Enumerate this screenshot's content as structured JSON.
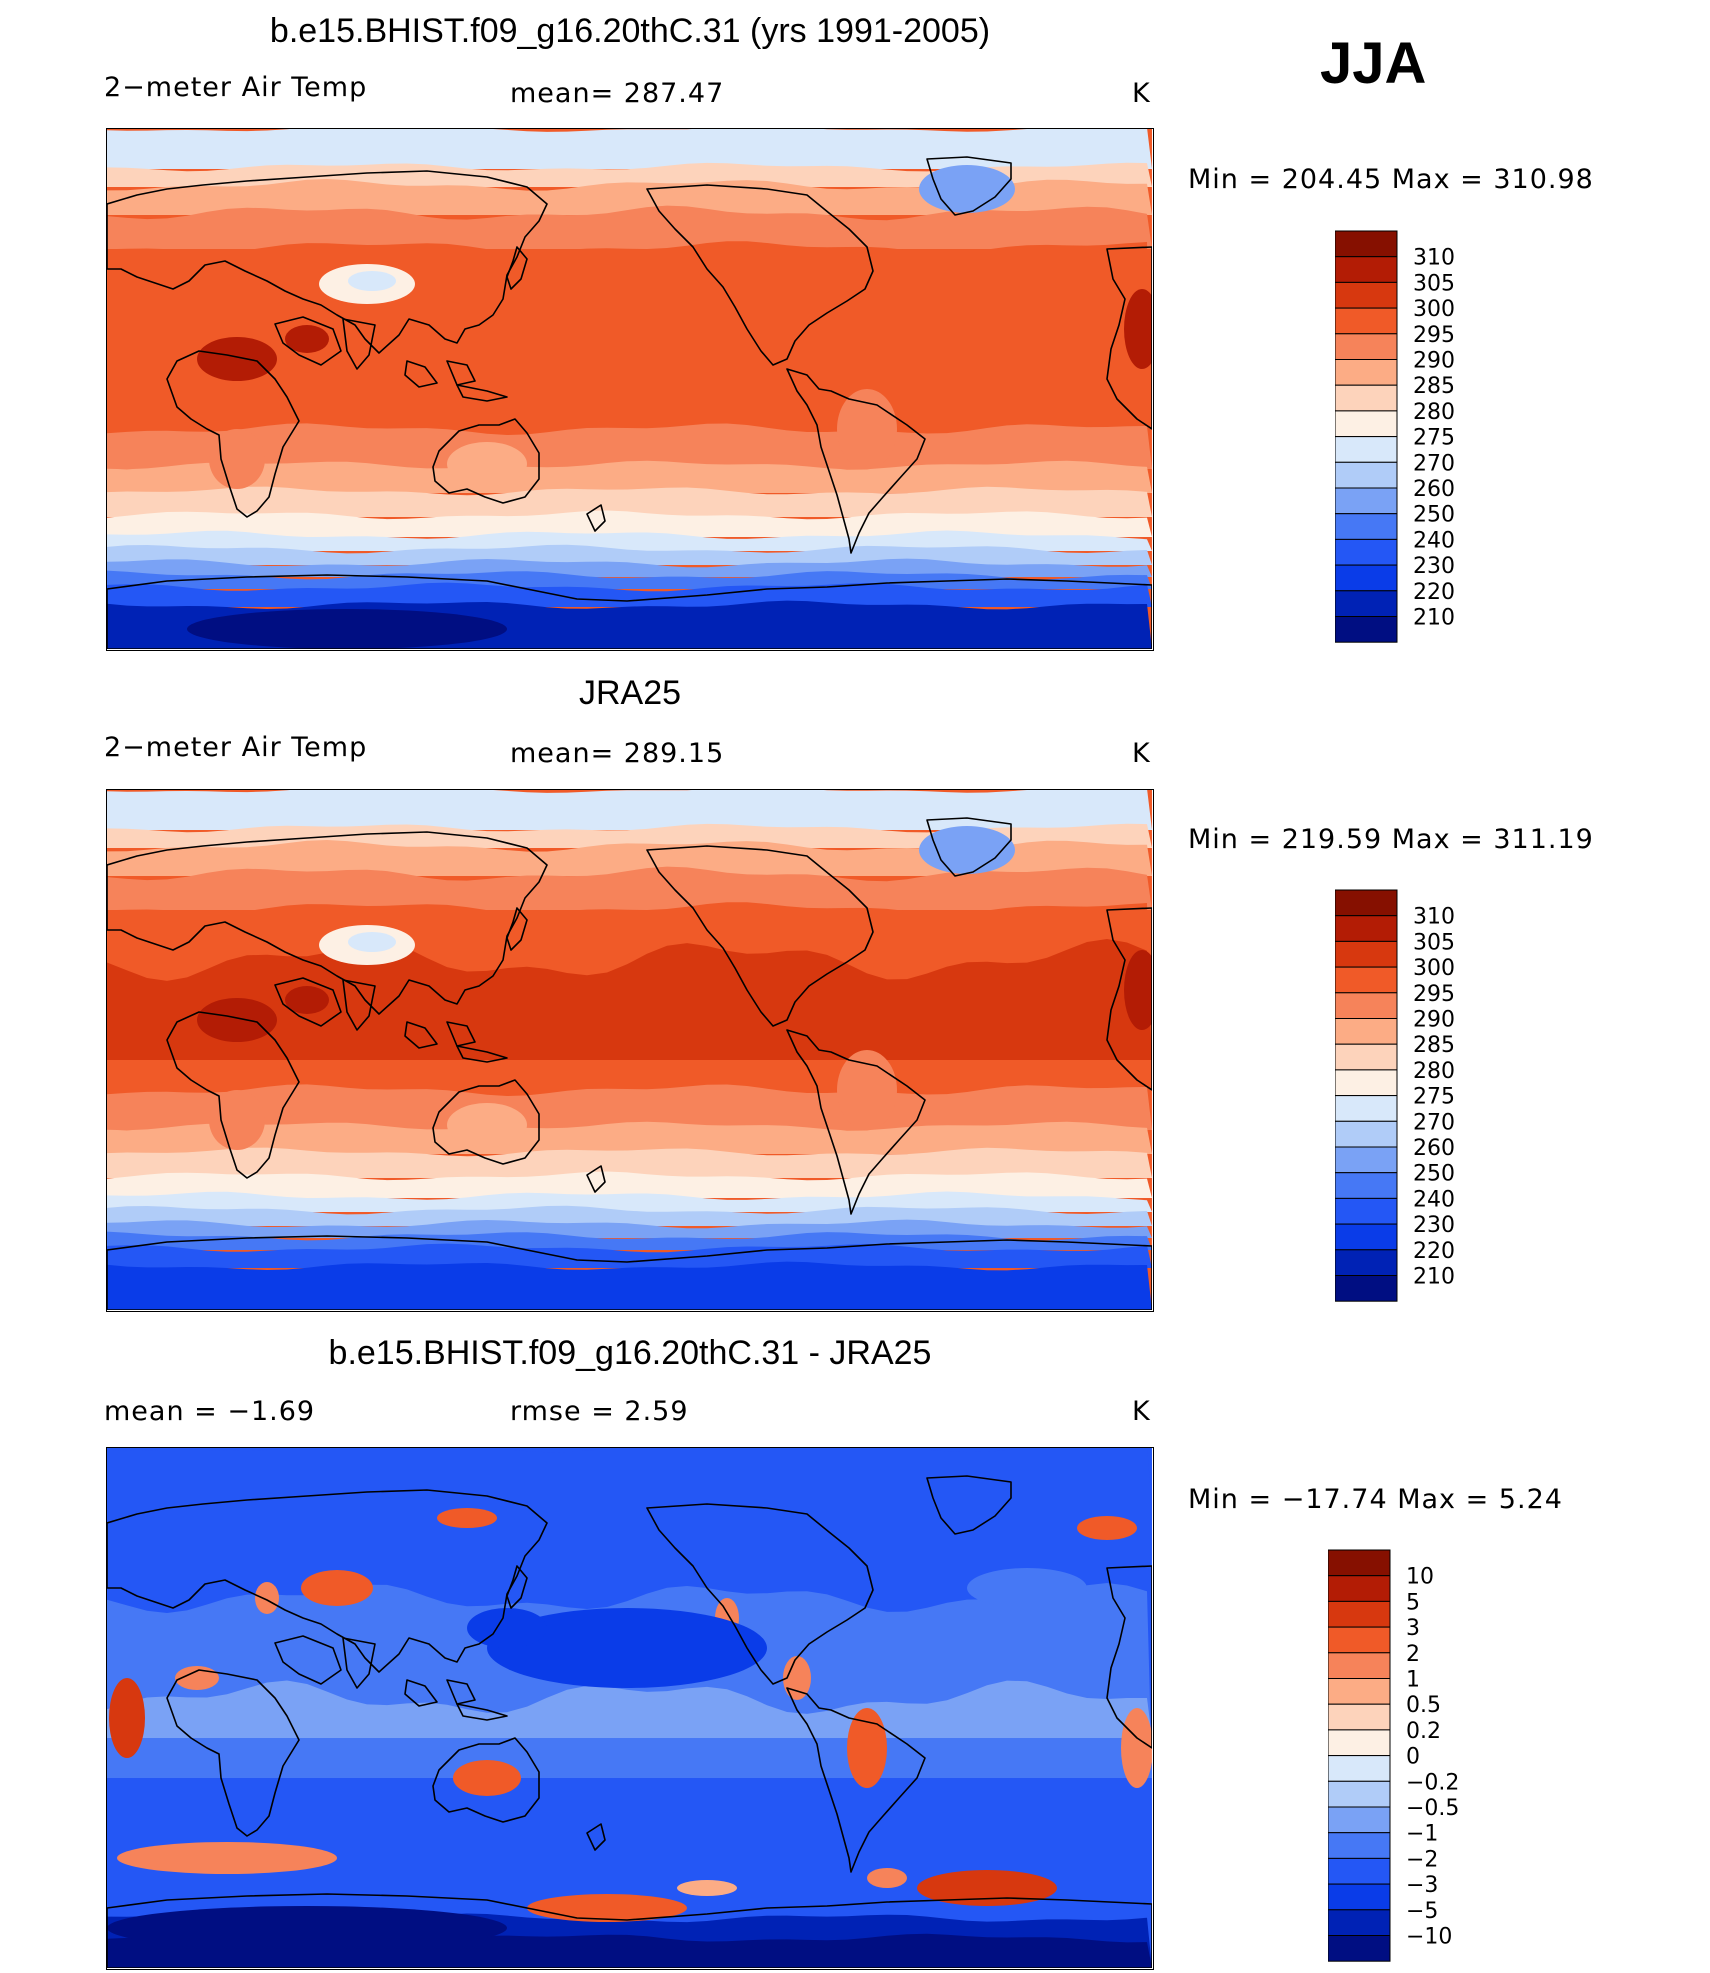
{
  "season": "JJA",
  "colors": {
    "abs_levels": [
      "#000e82",
      "#0022b5",
      "#0a3ce8",
      "#2457f5",
      "#4678f5",
      "#7aa2f5",
      "#b0ccf8",
      "#d8e8fa",
      "#fdf0e4",
      "#fdd3bb",
      "#fcac85",
      "#f6835a",
      "#f05a28",
      "#d7380f",
      "#b31c05",
      "#861000"
    ],
    "diff_levels": [
      "#000e82",
      "#0022b5",
      "#0a3ce8",
      "#2457f5",
      "#4678f5",
      "#7aa2f5",
      "#b0ccf8",
      "#d8e8fa",
      "#fdf0e4",
      "#fdd3bb",
      "#fcac85",
      "#f6835a",
      "#f05a28",
      "#d7380f",
      "#b31c05",
      "#861000"
    ]
  },
  "panels": [
    {
      "title": "b.e15.BHIST.f09_g16.20thC.31 (yrs 1991-2005)",
      "left_label": "2−meter Air Temp",
      "mid_label": "mean=  287.47",
      "unit": "K",
      "minmax": "Min  =  204.45  Max  =  310.98"
    },
    {
      "title": "JRA25",
      "left_label": "2−meter Air Temp",
      "mid_label": "mean=  289.15",
      "unit": "K",
      "minmax": "Min  =  219.59  Max  =  311.19"
    },
    {
      "title": "b.e15.BHIST.f09_g16.20thC.31 - JRA25",
      "left_label": "mean  =     −1.69",
      "mid_label": "rmse  =      2.59",
      "unit": "K",
      "minmax": "Min  =  −17.74  Max  =        5.24"
    }
  ],
  "chart_data": [
    {
      "type": "heatmap",
      "title": "b.e15.BHIST.f09_g16.20thC.31 (yrs 1991-2005)",
      "variable": "2-meter Air Temp",
      "units": "K",
      "mean": 287.47,
      "min": 204.45,
      "max": 310.98,
      "colorbar_ticks": [
        "310",
        "305",
        "300",
        "295",
        "290",
        "285",
        "280",
        "275",
        "270",
        "260",
        "250",
        "240",
        "230",
        "220",
        "210"
      ]
    },
    {
      "type": "heatmap",
      "title": "JRA25",
      "variable": "2-meter Air Temp",
      "units": "K",
      "mean": 289.15,
      "min": 219.59,
      "max": 311.19,
      "colorbar_ticks": [
        "310",
        "305",
        "300",
        "295",
        "290",
        "285",
        "280",
        "275",
        "270",
        "260",
        "250",
        "240",
        "230",
        "220",
        "210"
      ]
    },
    {
      "type": "heatmap",
      "title": "b.e15.BHIST.f09_g16.20thC.31 - JRA25",
      "variable": "2-meter Air Temp difference",
      "units": "K",
      "mean": -1.69,
      "rmse": 2.59,
      "min": -17.74,
      "max": 5.24,
      "colorbar_ticks": [
        "10",
        "5",
        "3",
        "2",
        "1",
        "0.5",
        "0.2",
        "0",
        "−0.2",
        "−0.5",
        "−1",
        "−2",
        "−3",
        "−5",
        "−10"
      ]
    }
  ]
}
